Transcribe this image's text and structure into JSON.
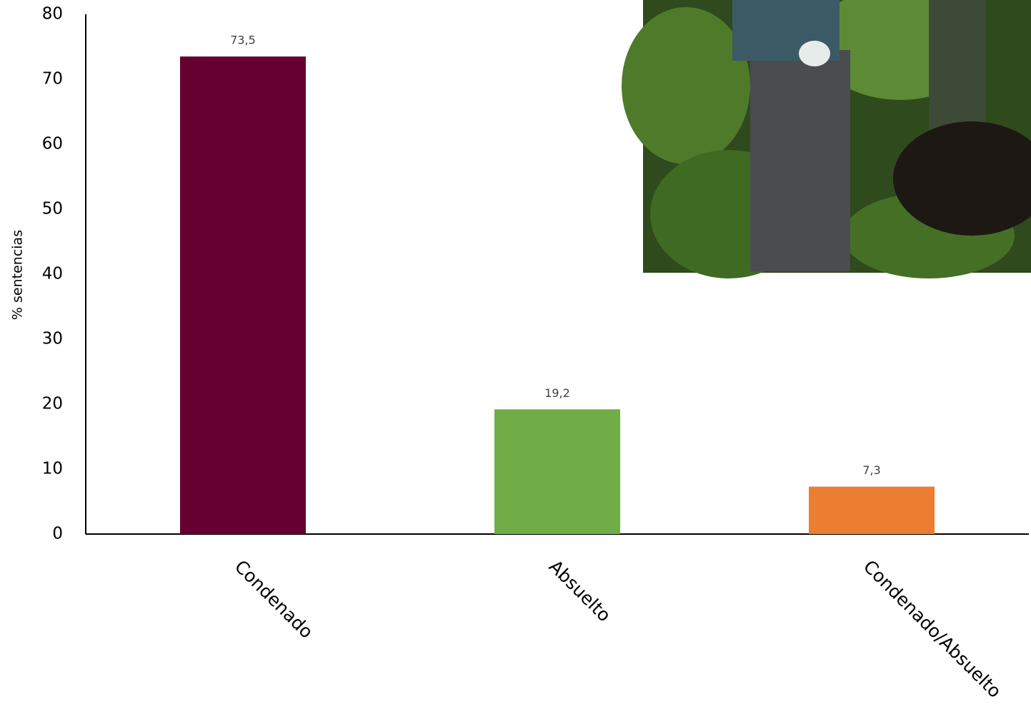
{
  "chart_data": {
    "type": "bar",
    "y_label": "% sentencias",
    "categories": [
      "Condenado",
      "Absuelto",
      "Condenado/Absuelto"
    ],
    "values": [
      73.5,
      19.2,
      7.3
    ],
    "value_labels": [
      "73,5",
      "19,2",
      "7,3"
    ],
    "colors": [
      "#650030",
      "#70ad47",
      "#ed7d31"
    ],
    "ylim": [
      0,
      80
    ],
    "yticks": [
      0,
      10,
      20,
      30,
      40,
      50,
      60,
      70,
      80
    ],
    "grid": false
  }
}
